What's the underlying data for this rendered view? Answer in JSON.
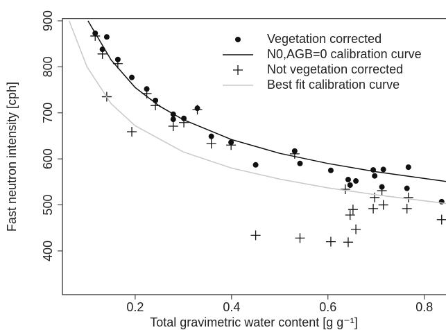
{
  "chart_data": {
    "type": "scatter",
    "x_label": "Total gravimetric water content [g g⁻¹]",
    "y_label": "Fast neutron intensity [cph]",
    "xlim": [
      0.049,
      0.845
    ],
    "ylim": [
      305,
      905
    ],
    "xticks": [
      0.2,
      0.4,
      0.6,
      0.8
    ],
    "yticks": [
      400,
      500,
      600,
      700,
      800,
      900
    ],
    "legend": "top-right",
    "series": [
      {
        "name": "Vegetation corrected",
        "color": "#111111",
        "marker": "dot",
        "x": [
          0.117,
          0.132,
          0.141,
          0.164,
          0.193,
          0.224,
          0.242,
          0.279,
          0.279,
          0.301,
          0.329,
          0.358,
          0.399,
          0.45,
          0.531,
          0.542,
          0.606,
          0.642,
          0.646,
          0.658,
          0.694,
          0.697,
          0.715,
          0.712,
          0.764,
          0.767,
          0.836
        ],
        "values": [
          873,
          838,
          865,
          816,
          777,
          752,
          727,
          697,
          686,
          688,
          710,
          649,
          636,
          587,
          617,
          590,
          575,
          555,
          543,
          552,
          576,
          563,
          577,
          539,
          536,
          582,
          507
        ]
      },
      {
        "name": "N0,AGB=0 calibration curve",
        "color": "#111111",
        "marker": "line",
        "x": [
          0.102,
          0.15,
          0.2,
          0.25,
          0.3,
          0.4,
          0.5,
          0.6,
          0.7,
          0.845
        ],
        "values": [
          900,
          815,
          755,
          715,
          685,
          642,
          612,
          590,
          572,
          551
        ]
      },
      {
        "name": "Not vegetation corrected",
        "color": "#111111",
        "marker": "plus",
        "x": [
          0.117,
          0.132,
          0.141,
          0.164,
          0.193,
          0.224,
          0.242,
          0.279,
          0.301,
          0.329,
          0.358,
          0.399,
          0.45,
          0.531,
          0.542,
          0.606,
          0.636,
          0.642,
          0.646,
          0.652,
          0.658,
          0.694,
          0.697,
          0.715,
          0.712,
          0.764,
          0.767,
          0.836
        ],
        "values": [
          867,
          828,
          735,
          807,
          659,
          742,
          716,
          671,
          679,
          707,
          633,
          630,
          434,
          611,
          428,
          420,
          534,
          419,
          478,
          490,
          447,
          492,
          516,
          500,
          531,
          492,
          516,
          468
        ]
      },
      {
        "name": "Best fit calibration curve",
        "color": "#c8c8c8",
        "marker": "line",
        "x": [
          0.063,
          0.1,
          0.15,
          0.2,
          0.3,
          0.4,
          0.5,
          0.6,
          0.7,
          0.845
        ],
        "values": [
          900,
          800,
          720,
          672,
          615,
          580,
          556,
          537,
          522,
          503
        ]
      }
    ]
  }
}
